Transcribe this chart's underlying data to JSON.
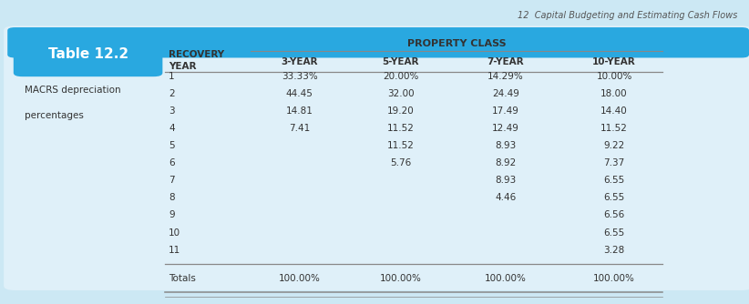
{
  "page_header": "12  Capital Budgeting and Estimating Cash Flows",
  "table_label": "Table 12.2",
  "table_subtitle1": "MACRS depreciation",
  "table_subtitle2": "percentages",
  "property_class_header": "PROPERTY CLASS",
  "col_headers_row1": [
    "RECOVERY",
    "3-YEAR",
    "5-YEAR",
    "7-YEAR",
    "10-YEAR"
  ],
  "col_headers_row2": [
    "YEAR",
    "",
    "",
    "",
    ""
  ],
  "rows": [
    [
      "1",
      "33.33%",
      "20.00%",
      "14.29%",
      "10.00%"
    ],
    [
      "2",
      "44.45",
      "32.00",
      "24.49",
      "18.00"
    ],
    [
      "3",
      "14.81",
      "19.20",
      "17.49",
      "14.40"
    ],
    [
      "4",
      "7.41",
      "11.52",
      "12.49",
      "11.52"
    ],
    [
      "5",
      "",
      "11.52",
      "8.93",
      "9.22"
    ],
    [
      "6",
      "",
      "5.76",
      "8.92",
      "7.37"
    ],
    [
      "7",
      "",
      "",
      "8.93",
      "6.55"
    ],
    [
      "8",
      "",
      "",
      "4.46",
      "6.55"
    ],
    [
      "9",
      "",
      "",
      "",
      "6.56"
    ],
    [
      "10",
      "",
      "",
      "",
      "6.55"
    ],
    [
      "11",
      "",
      "",
      "",
      "3.28"
    ]
  ],
  "totals_row": [
    "Totals",
    "100.00%",
    "100.00%",
    "100.00%",
    "100.00%"
  ],
  "outer_bg_color": "#cce8f4",
  "inner_bg_color": "#dff0f9",
  "top_bar_color": "#29a8e0",
  "table_label_bg": "#29a8e0",
  "table_label_text": "#ffffff",
  "page_header_color": "#555555",
  "text_color": "#333333",
  "line_color": "#888888"
}
